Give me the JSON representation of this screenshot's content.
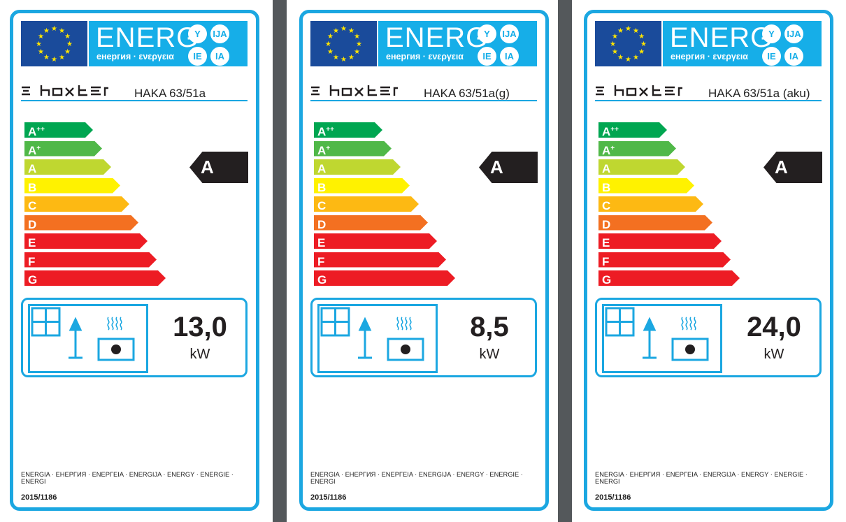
{
  "colors": {
    "accent": "#1ba7e1",
    "eu_blue": "#1a4b9b",
    "header_cyan": "#16aee8",
    "star": "#ffe500",
    "dark": "#231f20",
    "strip": "#54585b"
  },
  "scale": [
    {
      "letter": "A",
      "sup": "++",
      "color": "#00a651"
    },
    {
      "letter": "A",
      "sup": "+",
      "color": "#50b848"
    },
    {
      "letter": "A",
      "sup": "",
      "color": "#bfd730"
    },
    {
      "letter": "B",
      "sup": "",
      "color": "#fff200"
    },
    {
      "letter": "C",
      "sup": "",
      "color": "#fdb913"
    },
    {
      "letter": "D",
      "sup": "",
      "color": "#f37021"
    },
    {
      "letter": "E",
      "sup": "",
      "color": "#ed1c24"
    },
    {
      "letter": "F",
      "sup": "",
      "color": "#ed1c24"
    },
    {
      "letter": "G",
      "sup": "",
      "color": "#ed1c24"
    }
  ],
  "labels": [
    {
      "header": {
        "energ": "ENERG",
        "sub": "енергия · ενεργεια",
        "circles": [
          "Y",
          "IJA",
          "IE",
          "IA"
        ]
      },
      "brand": "hoxter",
      "model": "HAKA 63/51a",
      "rating": "A",
      "power": "13,0",
      "unit": "kW",
      "footer": "ENERGIA · ЕНЕРГИЯ · ΕΝΕΡΓΕΙΑ · ENERGIJA · ENERGY · ENERGIE · ENERGI",
      "regulation": "2015/1186",
      "icons": [
        "eu-flag-icon",
        "window-icon",
        "lamp-icon",
        "heater-icon"
      ]
    },
    {
      "header": {
        "energ": "ENERG",
        "sub": "енергия · ενεργεια",
        "circles": [
          "Y",
          "IJA",
          "IE",
          "IA"
        ]
      },
      "brand": "hoxter",
      "model": "HAKA 63/51a(g)",
      "rating": "A",
      "power": "8,5",
      "unit": "kW",
      "footer": "ENERGIA · ЕНЕРГИЯ · ΕΝΕΡΓΕΙΑ · ENERGIJA · ENERGY · ENERGIE · ENERGI",
      "regulation": "2015/1186",
      "icons": [
        "eu-flag-icon",
        "window-icon",
        "lamp-icon",
        "heater-icon"
      ]
    },
    {
      "header": {
        "energ": "ENERG",
        "sub": "енергия · ενεργεια",
        "circles": [
          "Y",
          "IJA",
          "IE",
          "IA"
        ]
      },
      "brand": "hoxter",
      "model": "HAKA 63/51a (aku)",
      "rating": "A",
      "power": "24,0",
      "unit": "kW",
      "footer": "ENERGIA · ЕНЕРГИЯ · ΕΝΕΡΓΕΙΑ · ENERGIJA · ENERGY · ENERGIE · ENERGI",
      "regulation": "2015/1186",
      "icons": [
        "eu-flag-icon",
        "window-icon",
        "lamp-icon",
        "heater-icon"
      ]
    }
  ]
}
